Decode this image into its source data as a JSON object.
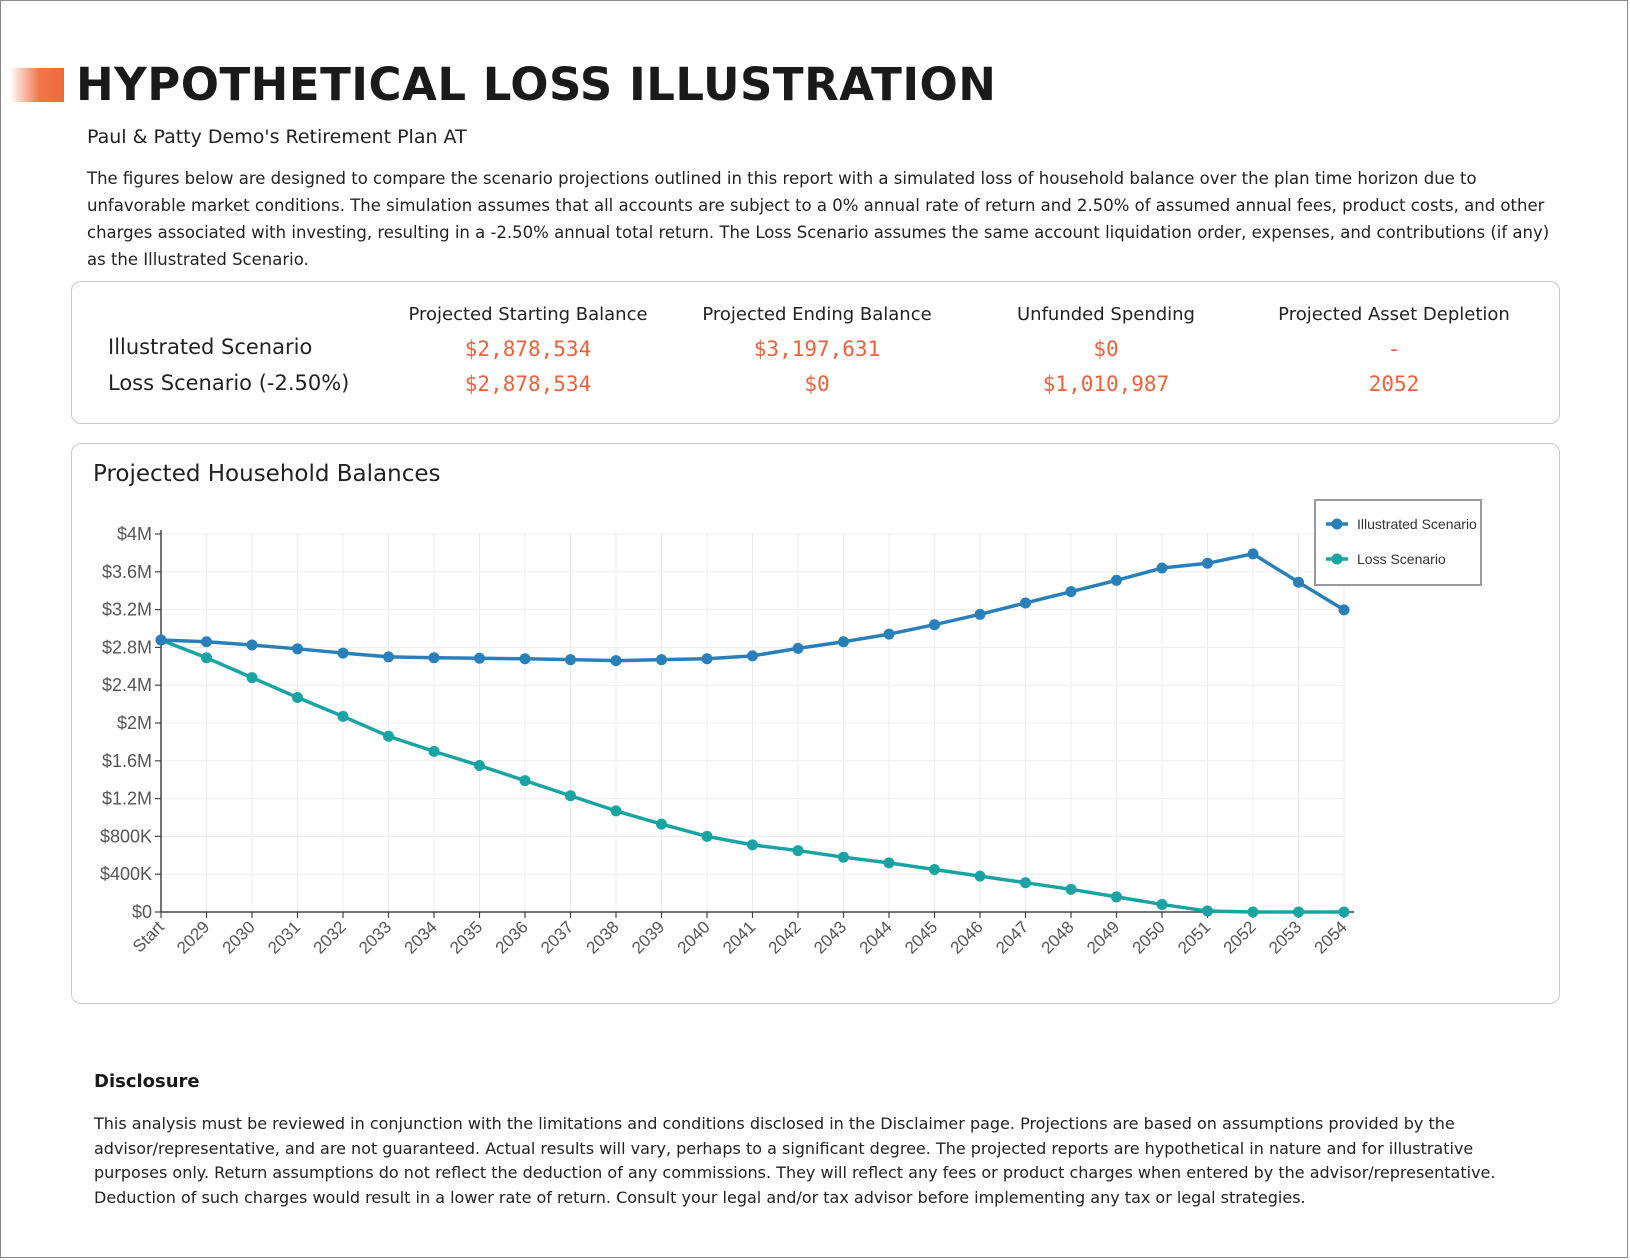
{
  "header": {
    "title": "HYPOTHETICAL LOSS ILLUSTRATION",
    "subtitle": "Paul & Patty Demo's Retirement Plan AT",
    "intro": "The figures below are designed to compare the scenario projections outlined in this report with a simulated loss of household balance over the plan time horizon due to unfavorable market conditions. The simulation assumes that all accounts are subject to a 0% annual rate of return and 2.50% of assumed annual fees, product costs, and other charges associated with investing, resulting in a -2.50% annual total return. The Loss Scenario assumes the same account liquidation order, expenses, and contributions (if any) as the Illustrated Scenario."
  },
  "summary": {
    "columns": [
      "Projected Starting Balance",
      "Projected Ending Balance",
      "Unfunded Spending",
      "Projected Asset Depletion"
    ],
    "rows": [
      {
        "label": "Illustrated Scenario",
        "values": [
          "$2,878,534",
          "$3,197,631",
          "$0",
          "-"
        ]
      },
      {
        "label": "Loss Scenario (-2.50%)",
        "values": [
          "$2,878,534",
          "$0",
          "$1,010,987",
          "2052"
        ]
      }
    ]
  },
  "chart_data": {
    "type": "line",
    "title": "Projected Household Balances",
    "xlabel": "",
    "ylabel": "",
    "x": [
      "Start",
      "2029",
      "2030",
      "2031",
      "2032",
      "2033",
      "2034",
      "2035",
      "2036",
      "2037",
      "2038",
      "2039",
      "2040",
      "2041",
      "2042",
      "2043",
      "2044",
      "2045",
      "2046",
      "2047",
      "2048",
      "2049",
      "2050",
      "2051",
      "2052",
      "2053",
      "2054"
    ],
    "ylim": [
      0,
      4000000
    ],
    "y_ticks": [
      0,
      400000,
      800000,
      1200000,
      1600000,
      2000000,
      2400000,
      2800000,
      3200000,
      3600000,
      4000000
    ],
    "y_tick_labels": [
      "$0",
      "$400K",
      "$800K",
      "$1.2M",
      "$1.6M",
      "$2M",
      "$2.4M",
      "$2.8M",
      "$3.2M",
      "$3.6M",
      "$4M"
    ],
    "grid": true,
    "legend_position": "top-right",
    "series": [
      {
        "name": "Illustrated Scenario",
        "color": "#2980b9",
        "values": [
          2878534,
          2860000,
          2825000,
          2785000,
          2740000,
          2700000,
          2690000,
          2685000,
          2680000,
          2670000,
          2660000,
          2670000,
          2680000,
          2710000,
          2790000,
          2860000,
          2940000,
          3040000,
          3150000,
          3270000,
          3390000,
          3510000,
          3640000,
          3690000,
          3790000,
          3490000,
          3197631
        ]
      },
      {
        "name": "Loss Scenario",
        "color": "#1aa3a3",
        "values": [
          2878534,
          2690000,
          2480000,
          2270000,
          2070000,
          1860000,
          1700000,
          1550000,
          1390000,
          1230000,
          1070000,
          930000,
          800000,
          710000,
          650000,
          580000,
          520000,
          450000,
          380000,
          310000,
          240000,
          160000,
          80000,
          10000,
          0,
          0,
          0
        ]
      }
    ]
  },
  "disclosure": {
    "title": "Disclosure",
    "text": "This analysis must be reviewed in conjunction with the limitations and conditions disclosed in the Disclaimer page. Projections are based on assumptions provided by the advisor/representative, and are not guaranteed. Actual results will vary, perhaps to a significant degree. The projected reports are hypothetical in nature and for illustrative purposes only. Return assumptions do not reflect the deduction of any commissions. They will reflect any fees or product charges when entered by the advisor/representative. Deduction of such charges would result in a lower rate of return. Consult your legal and/or tax advisor before implementing any tax or legal strategies."
  }
}
